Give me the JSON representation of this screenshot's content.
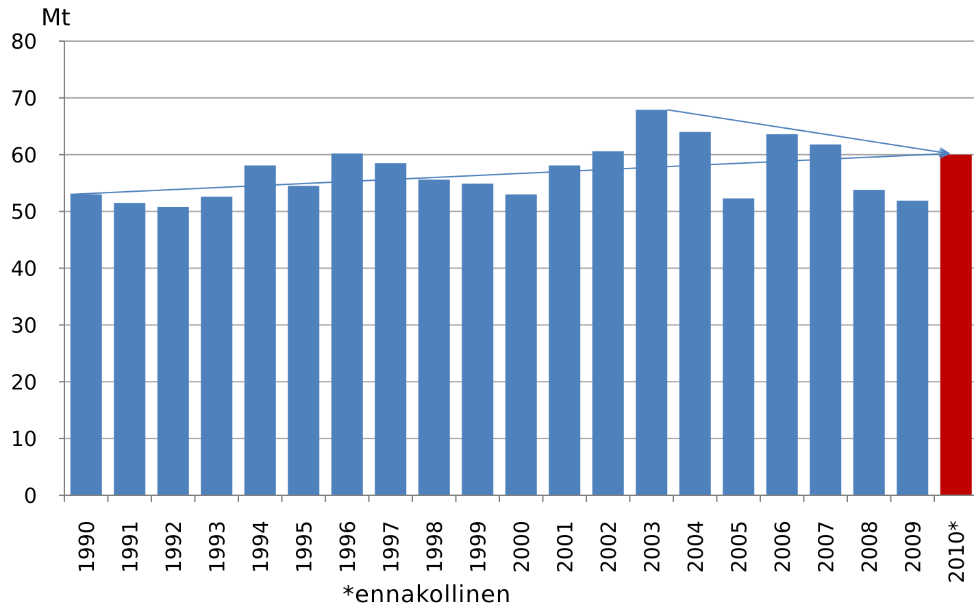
{
  "chart_data": {
    "type": "bar",
    "unit_label": "Mt",
    "footnote": "*ennakollinen",
    "categories": [
      "1990",
      "1991",
      "1992",
      "1993",
      "1994",
      "1995",
      "1996",
      "1997",
      "1998",
      "1999",
      "2000",
      "2001",
      "2002",
      "2003",
      "2004",
      "2005",
      "2006",
      "2007",
      "2008",
      "2009",
      "2010*"
    ],
    "values": [
      53,
      51.5,
      50.8,
      52.6,
      58.1,
      54.5,
      60.2,
      58.5,
      55.6,
      54.9,
      53,
      58.1,
      60.6,
      67.9,
      64,
      52.3,
      63.6,
      61.8,
      53.8,
      51.9,
      60
    ],
    "ylim": [
      0,
      80
    ],
    "yticks": [
      0,
      10,
      20,
      30,
      40,
      50,
      60,
      70,
      80
    ],
    "grid": true,
    "colors": {
      "bar": "#4f81bd",
      "highlight": "#c00000",
      "arrow": "#4f81bd",
      "grid": "#a6a6a6"
    },
    "highlight_index": 20,
    "annotations": [
      {
        "type": "arrow",
        "from_category": "1990",
        "from_value": 53,
        "to_category": "2010*",
        "to_value": 60.2
      },
      {
        "type": "arrow",
        "from_category": "2003",
        "from_value": 67.9,
        "to_category": "2010*",
        "to_value": 60.2
      }
    ]
  }
}
